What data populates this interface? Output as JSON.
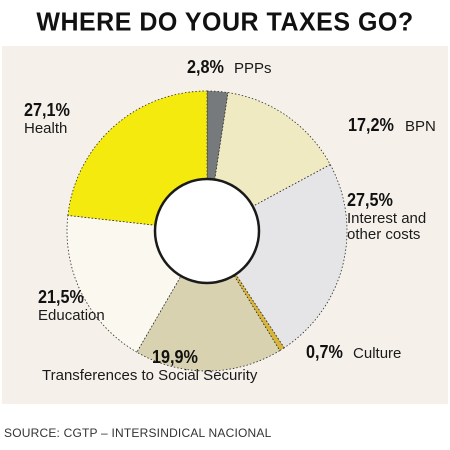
{
  "chart_data": {
    "type": "pie",
    "title": "WHERE DO YOUR TAXES GO?",
    "donut": true,
    "slices": [
      {
        "name": "PPPs",
        "value": 2.8,
        "label": "2,8%",
        "color": "#777a7c"
      },
      {
        "name": "BPN",
        "value": 17.2,
        "label": "17,2%",
        "color": "#efeac2"
      },
      {
        "name": "Interest and other costs",
        "value": 27.5,
        "label": "27,5%",
        "color": "#e5e4e7"
      },
      {
        "name": "Culture",
        "value": 0.7,
        "label": "0,7%",
        "color": "#d7b43a"
      },
      {
        "name": "Transferences to Social Security",
        "value": 19.9,
        "label": "19,9%",
        "color": "#d8d2b1"
      },
      {
        "name": "Education",
        "value": 21.5,
        "label": "21,5%",
        "color": "#faf8ef"
      },
      {
        "name": "Health",
        "value": 27.1,
        "label": "27,1%",
        "color": "#f5ea0e"
      }
    ],
    "source": "SOURCE: CGTP – INTERSINDICAL NACIONAL"
  }
}
